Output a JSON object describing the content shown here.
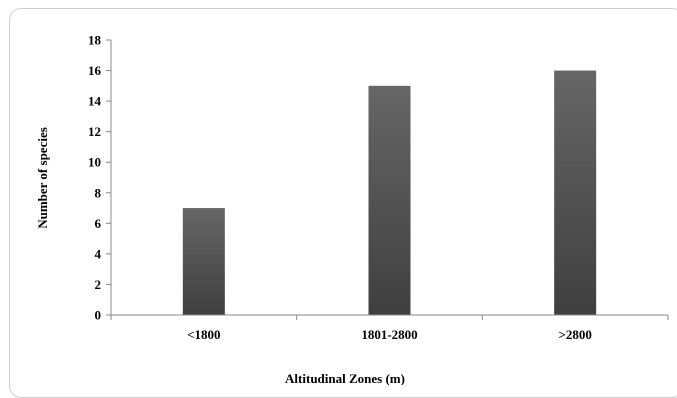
{
  "chart_data": {
    "type": "bar",
    "categories": [
      "<1800",
      "1801-2800",
      ">2800"
    ],
    "values": [
      7,
      15,
      16
    ],
    "title": "",
    "xlabel": "Altitudinal Zones (m)",
    "ylabel": "Number of species",
    "ylim": [
      0,
      18
    ],
    "yticks": [
      "0",
      "2",
      "4",
      "6",
      "8",
      "10",
      "12",
      "14",
      "16",
      "18"
    ],
    "grid": false,
    "legend": "none",
    "bar_color_top": "#666666",
    "bar_color_bottom": "#3f3f3f"
  }
}
